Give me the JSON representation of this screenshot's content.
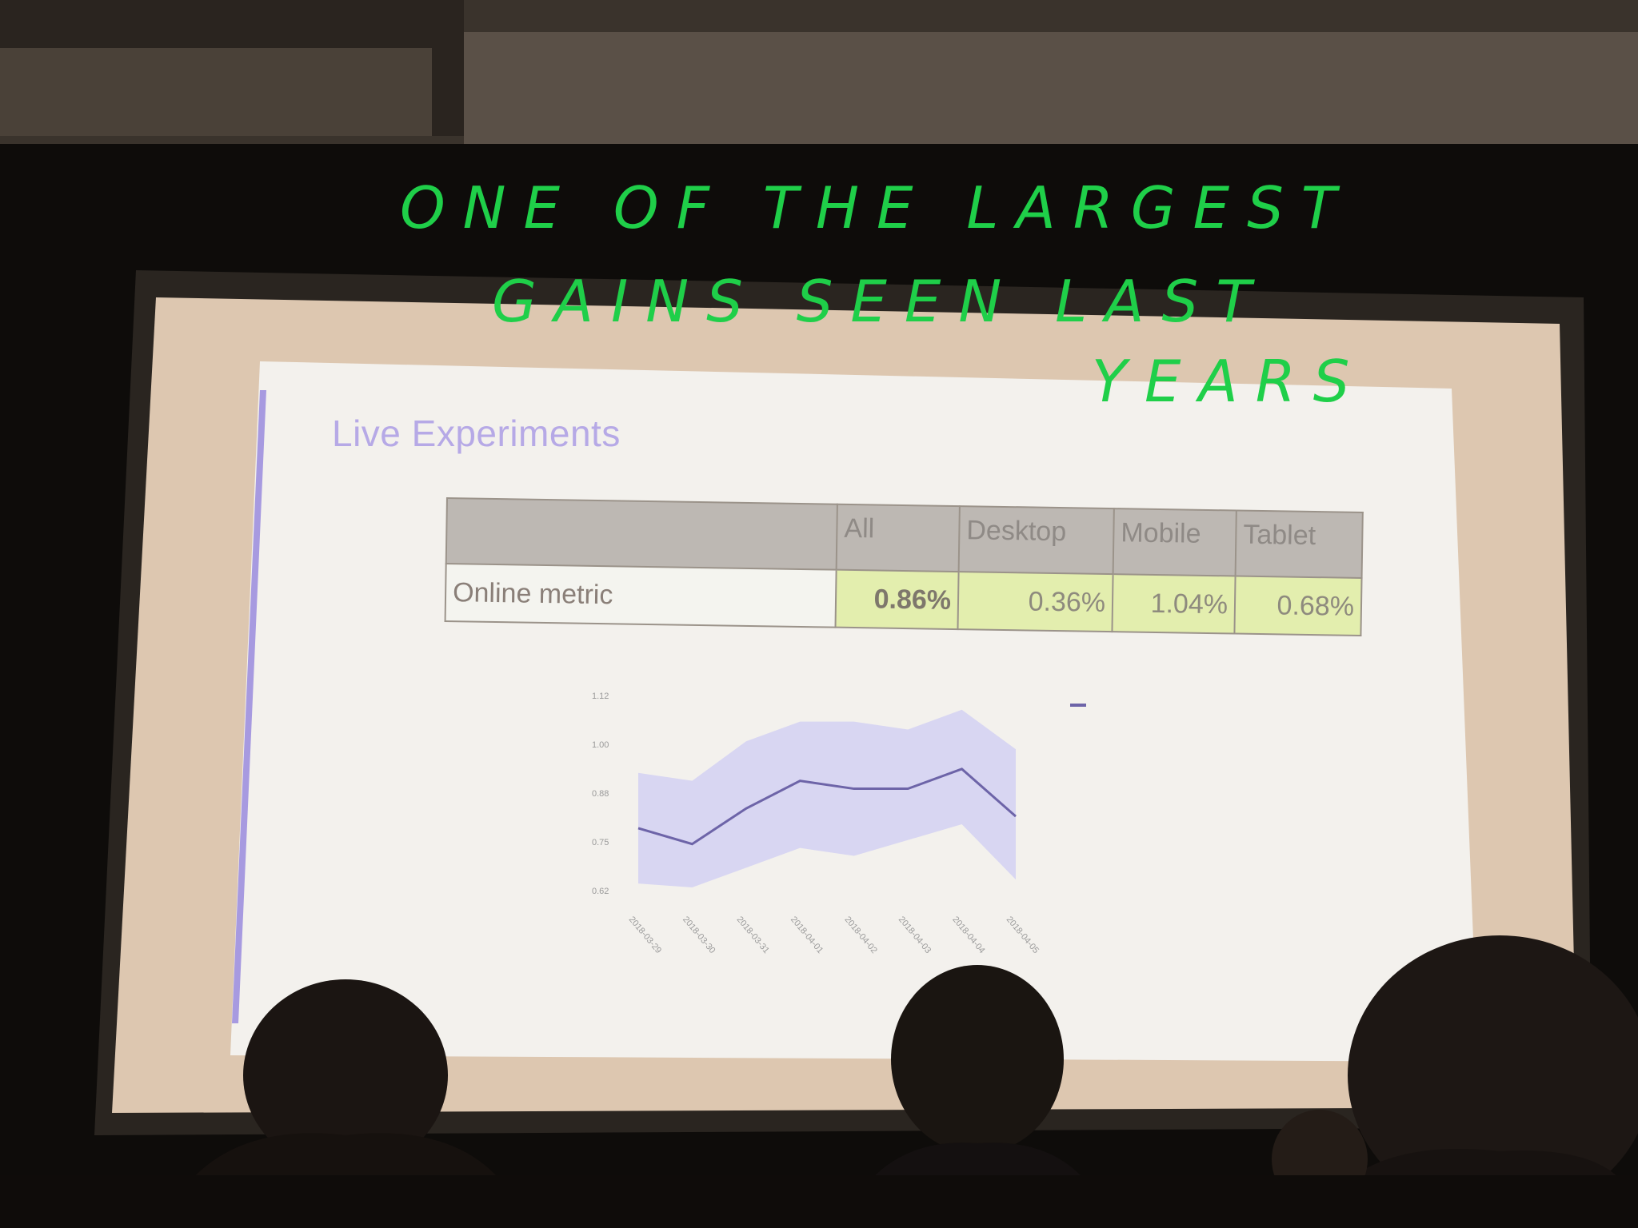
{
  "slide": {
    "title": "Live Experiments"
  },
  "table": {
    "headers": [
      "",
      "All",
      "Desktop",
      "Mobile",
      "Tablet"
    ],
    "row_label": "Online metric",
    "values": [
      "0.86%",
      "0.36%",
      "1.04%",
      "0.68%"
    ]
  },
  "chart_data": {
    "type": "line",
    "y_ticks": [
      "1.12",
      "1.00",
      "0.88",
      "0.75",
      "0.62"
    ],
    "ylim": [
      0.62,
      1.12
    ],
    "x": [
      "2018-03-29",
      "2018-03-30",
      "2018-03-31",
      "2018-04-01",
      "2018-04-02",
      "2018-04-03",
      "2018-04-04",
      "2018-04-05"
    ],
    "series": [
      {
        "values": [
          0.78,
          0.74,
          0.83,
          0.9,
          0.88,
          0.88,
          0.93,
          0.81
        ]
      }
    ],
    "band_upper": [
      0.92,
      0.9,
      1.0,
      1.05,
      1.05,
      1.03,
      1.08,
      0.98
    ],
    "band_lower": [
      0.64,
      0.63,
      0.68,
      0.73,
      0.71,
      0.75,
      0.79,
      0.65
    ],
    "line_color": "#6d64a8",
    "band_color": "#d8d6f2"
  },
  "annotation": {
    "lines": [
      "ONE OF THE LARGEST",
      "GAINS SEEN LAST",
      "YEARS"
    ],
    "color": "#1fcf49"
  }
}
